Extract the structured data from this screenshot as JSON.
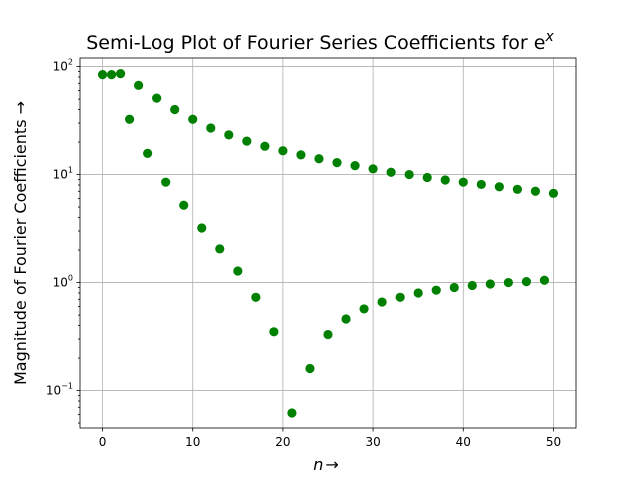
{
  "chart_data": {
    "type": "scatter",
    "title": "Semi-Log Plot of Fourier Series Coefficients for e",
    "title_superscript": "x",
    "xlabel": "n",
    "xlabel_arrow": "→",
    "ylabel": "Magnitude of Fourier Coefficients →",
    "y_scale": "log",
    "xlim": [
      -2.5,
      52.5
    ],
    "ylim": [
      0.045,
      120
    ],
    "x_ticks": [
      0,
      10,
      20,
      30,
      40,
      50
    ],
    "y_ticks": [
      {
        "value": 0.1,
        "base": "10",
        "exp": "−1"
      },
      {
        "value": 1,
        "base": "10",
        "exp": "0"
      },
      {
        "value": 10,
        "base": "10",
        "exp": "1"
      },
      {
        "value": 100,
        "base": "10",
        "exp": "2"
      }
    ],
    "grid": true,
    "marker_color": "#008000",
    "series": [
      {
        "x": [
          0,
          1,
          2,
          3,
          4,
          5,
          6,
          7,
          8,
          9,
          10,
          11,
          12,
          13,
          14,
          15,
          16,
          17,
          18,
          19,
          20,
          21,
          22,
          23,
          24,
          25,
          26,
          27,
          28,
          29,
          30,
          31,
          32,
          33,
          34,
          35,
          36,
          37,
          38,
          39,
          40,
          41,
          42,
          43,
          44,
          45,
          46,
          47,
          48,
          49,
          50
        ],
        "y": [
          84.2,
          84.2,
          86.0,
          32.5,
          67.0,
          15.7,
          51.0,
          8.5,
          40.0,
          5.2,
          32.5,
          3.2,
          27.0,
          2.05,
          23.3,
          1.28,
          20.4,
          0.73,
          18.3,
          0.35,
          16.6,
          0.062,
          15.2,
          0.16,
          14.0,
          0.33,
          12.9,
          0.46,
          12.1,
          0.57,
          11.3,
          0.66,
          10.5,
          0.73,
          10.0,
          0.8,
          9.4,
          0.85,
          8.9,
          0.9,
          8.5,
          0.94,
          8.1,
          0.97,
          7.7,
          1.0,
          7.3,
          1.02,
          7.0,
          1.05,
          6.7
        ]
      }
    ]
  }
}
